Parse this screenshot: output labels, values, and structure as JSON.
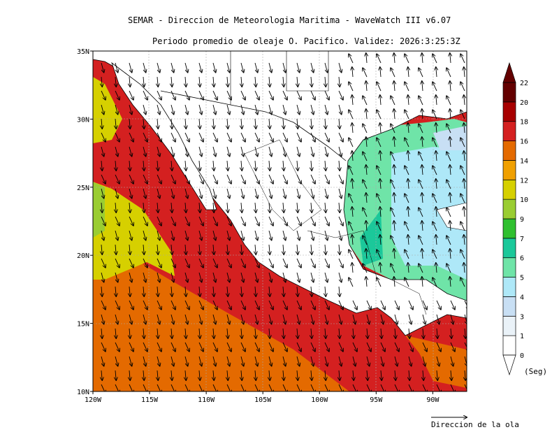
{
  "title_line1": "SEMAR - Direccion de Meteorologia Maritima - WaveWatch III v6.07",
  "title_line2": "Periodo promedio de oleaje O. Pacifico. Validez: 2026:3:25:3Z",
  "axes": {
    "lon_labels": [
      "120W",
      "115W",
      "110W",
      "105W",
      "100W",
      "95W",
      "90W"
    ],
    "lat_labels": [
      "35N",
      "30N",
      "25N",
      "20N",
      "15N",
      "10N"
    ],
    "lon_range": [
      -120,
      -87
    ],
    "lat_range": [
      10,
      35
    ]
  },
  "legend": {
    "levels": [
      "0",
      "1",
      "3",
      "4",
      "5",
      "6",
      "7",
      "9",
      "10",
      "12",
      "14",
      "16",
      "18",
      "20",
      "22"
    ],
    "colors": [
      "#ffffff",
      "#eaf2f8",
      "#c8dff4",
      "#aee8f8",
      "#6fe4a8",
      "#1bc89a",
      "#30c030",
      "#9acd32",
      "#d6d000",
      "#f0a000",
      "#e46a00",
      "#d42020",
      "#a80000",
      "#640000"
    ],
    "unit": "(Seg)"
  },
  "arrow_caption": "Direccion de la ola",
  "colors": {
    "frame": "#000000",
    "land": "#ffffff",
    "grid": "#aaaaaa"
  }
}
